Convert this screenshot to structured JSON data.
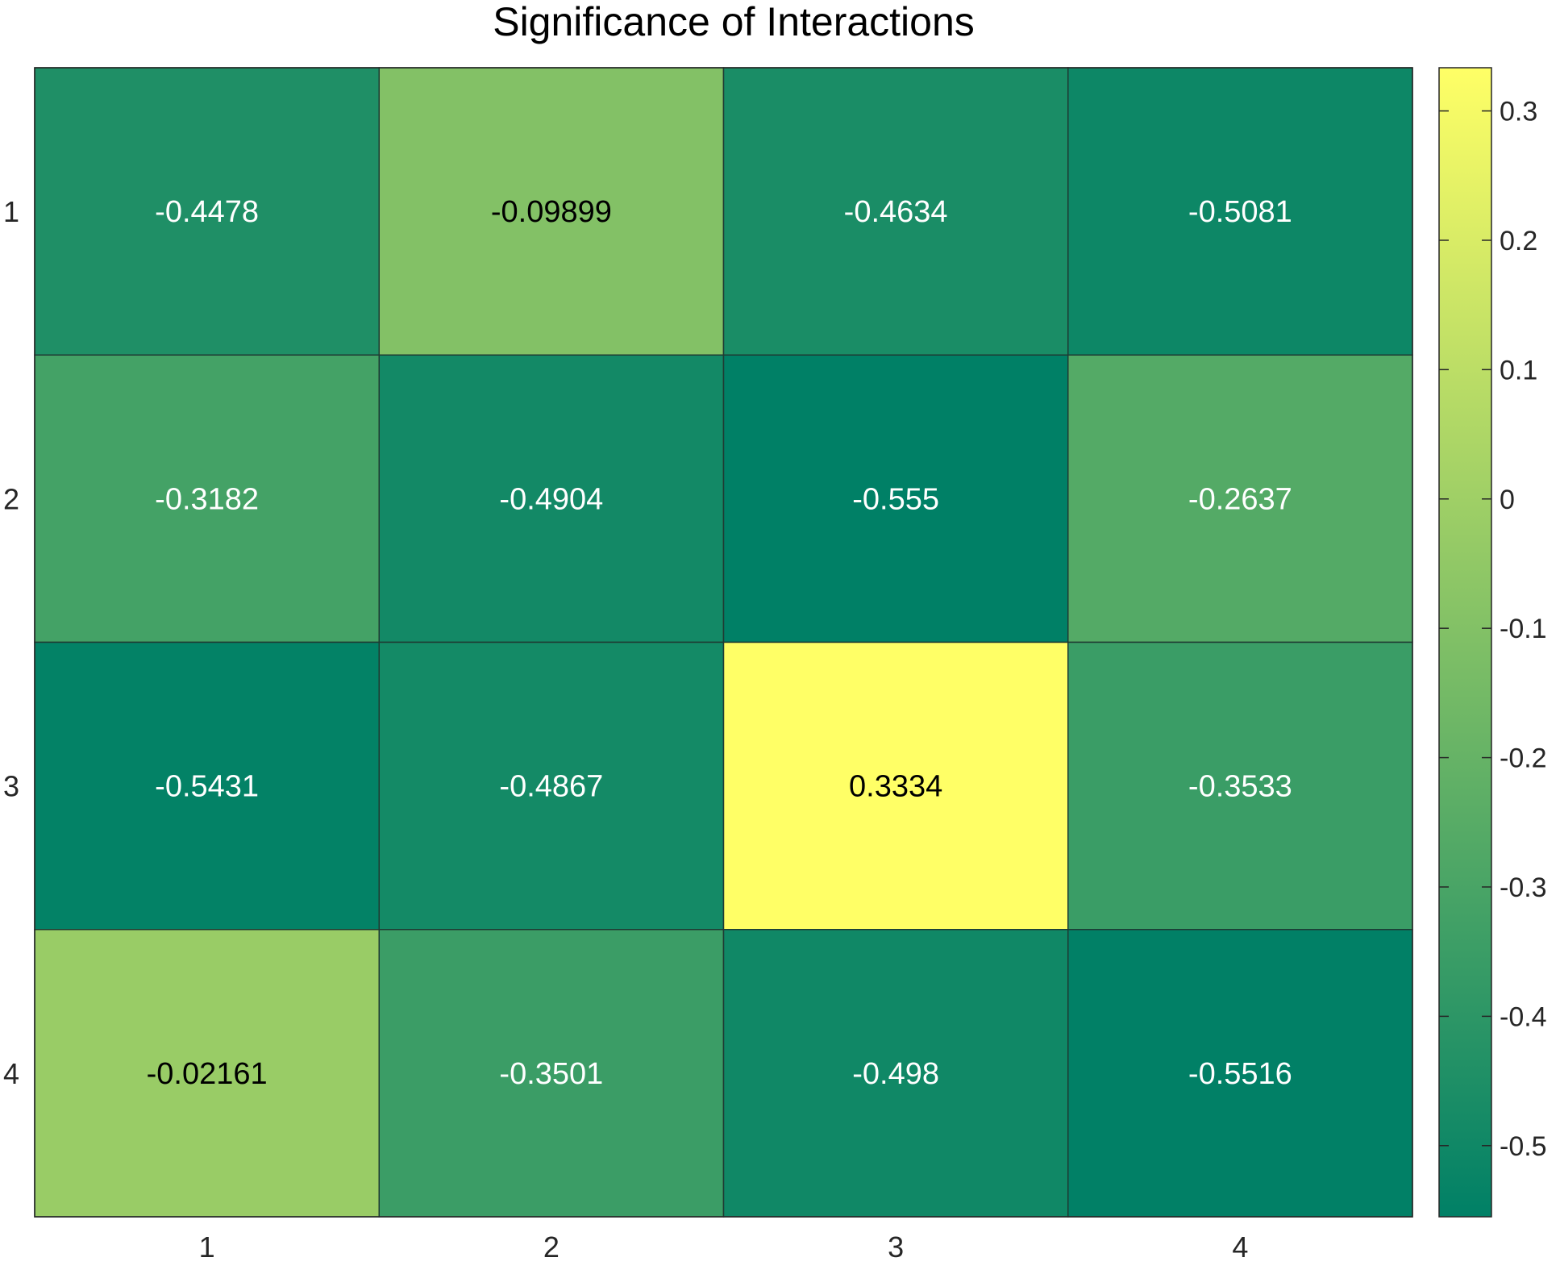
{
  "chart_data": {
    "type": "heatmap",
    "title": "Significance of Interactions",
    "xlabel": "",
    "ylabel": "",
    "x_categories": [
      "1",
      "2",
      "3",
      "4"
    ],
    "y_categories": [
      "1",
      "2",
      "3",
      "4"
    ],
    "values": [
      [
        -0.4478,
        -0.09899,
        -0.4634,
        -0.5081
      ],
      [
        -0.3182,
        -0.4904,
        -0.555,
        -0.2637
      ],
      [
        -0.5431,
        -0.4867,
        0.3334,
        -0.3533
      ],
      [
        -0.02161,
        -0.3501,
        -0.498,
        -0.5516
      ]
    ],
    "value_labels": [
      [
        "-0.4478",
        "-0.09899",
        "-0.4634",
        "-0.5081"
      ],
      [
        "-0.3182",
        "-0.4904",
        "-0.555",
        "-0.2637"
      ],
      [
        "-0.5431",
        "-0.4867",
        "0.3334",
        "-0.3533"
      ],
      [
        "-0.02161",
        "-0.3501",
        "-0.498",
        "-0.5516"
      ]
    ],
    "colorbar": {
      "min": -0.555,
      "max": 0.3334,
      "ticks": [
        0.3,
        0.2,
        0.1,
        0,
        -0.1,
        -0.2,
        -0.3,
        -0.4,
        -0.5
      ],
      "tick_labels": [
        "0.3",
        "0.2",
        "0.1",
        "0",
        "-0.1",
        "-0.2",
        "-0.3",
        "-0.4",
        "-0.5"
      ],
      "colormap": "summer",
      "color_low": "#008066",
      "color_high": "#ffff66"
    },
    "grid": false,
    "legend": "none"
  }
}
